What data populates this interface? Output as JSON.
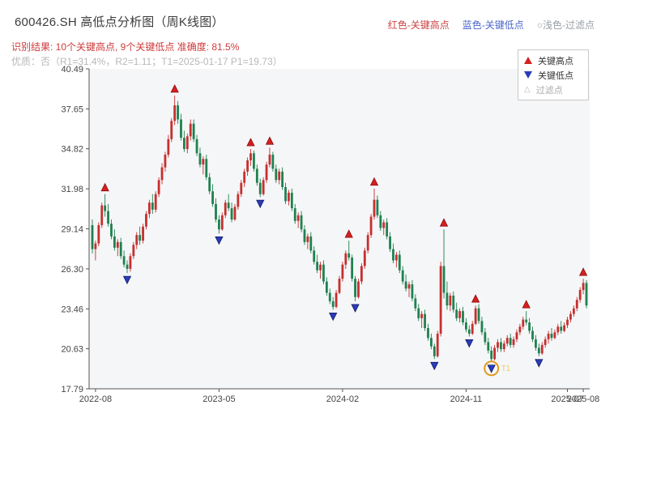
{
  "header": {
    "title": "600426.SH 高低点分析图（周K线图）",
    "legend_inline": {
      "high": "红色-关键高点",
      "low": "蓝色-关键低点",
      "filter": "○浅色-过滤点"
    },
    "result_line": "识别结果: 10个关键高点, 9个关键低点  准确度: 81.5%",
    "quality_line": "优质：否（R1=31.4%，R2=1.11；T1=2025-01-17 P1=19.73）"
  },
  "legend_box": {
    "items": [
      {
        "label": "关键高点",
        "marker": "up-triangle",
        "color": "#d42020"
      },
      {
        "label": "关键低点",
        "marker": "down-triangle",
        "color": "#2a3cb8"
      },
      {
        "label": "过滤点",
        "marker": "hollow-triangle",
        "color": "#b9b9b9"
      }
    ]
  },
  "chart_data": {
    "type": "candlestick",
    "title": "600426.SH 高低点分析图（周K线图）",
    "ylim": [
      17.79,
      40.49
    ],
    "y_ticks": [
      "40.49",
      "37.65",
      "34.82",
      "31.98",
      "29.14",
      "26.30",
      "23.46",
      "20.63",
      "17.79"
    ],
    "x_ticks": [
      {
        "index": 1,
        "label": "2022-08"
      },
      {
        "index": 40,
        "label": "2023-05"
      },
      {
        "index": 79,
        "label": "2024-02"
      },
      {
        "index": 118,
        "label": "2024-11"
      },
      {
        "index": 150,
        "label": "2025-07"
      },
      {
        "index": 155,
        "label": "2025-08"
      }
    ],
    "up_color": "#c62f2f",
    "down_color": "#1f8150",
    "plot_bg": "#f5f6f7",
    "axis_color": "#555555",
    "tick_label_color": "#444444",
    "high_marker": {
      "fill": "#d42020",
      "stroke": "#8a0c0c"
    },
    "low_marker": {
      "fill": "#2a3cb8",
      "stroke": "#121d66"
    },
    "candles": [
      [
        29.4,
        29.8,
        27.4,
        27.7
      ],
      [
        27.7,
        28.3,
        26.9,
        28.1
      ],
      [
        28.1,
        29.6,
        27.9,
        29.4
      ],
      [
        29.4,
        31.0,
        29.2,
        30.8
      ],
      [
        30.8,
        31.6,
        30.0,
        30.4
      ],
      [
        30.4,
        30.9,
        29.3,
        29.5
      ],
      [
        29.5,
        29.8,
        28.4,
        28.6
      ],
      [
        28.6,
        29.1,
        27.6,
        27.8
      ],
      [
        27.8,
        28.4,
        27.2,
        28.2
      ],
      [
        28.2,
        28.5,
        27.0,
        27.2
      ],
      [
        27.2,
        27.6,
        26.4,
        26.6
      ],
      [
        26.6,
        26.9,
        26.0,
        26.3
      ],
      [
        26.3,
        27.4,
        26.1,
        27.2
      ],
      [
        27.2,
        28.2,
        27.0,
        28.0
      ],
      [
        28.0,
        28.9,
        27.7,
        28.7
      ],
      [
        28.7,
        29.3,
        28.0,
        28.3
      ],
      [
        28.3,
        29.5,
        28.1,
        29.3
      ],
      [
        29.3,
        30.4,
        29.1,
        30.2
      ],
      [
        30.2,
        31.2,
        29.9,
        31.0
      ],
      [
        31.0,
        31.6,
        30.2,
        30.5
      ],
      [
        30.5,
        31.8,
        30.3,
        31.6
      ],
      [
        31.6,
        32.8,
        31.4,
        32.6
      ],
      [
        32.6,
        33.8,
        32.3,
        33.5
      ],
      [
        33.5,
        34.6,
        33.2,
        34.4
      ],
      [
        34.4,
        35.8,
        34.2,
        35.5
      ],
      [
        35.5,
        37.0,
        35.3,
        36.8
      ],
      [
        36.8,
        38.6,
        36.5,
        37.9
      ],
      [
        37.9,
        38.2,
        36.6,
        36.9
      ],
      [
        36.9,
        37.3,
        35.4,
        35.6
      ],
      [
        35.6,
        36.1,
        34.6,
        34.8
      ],
      [
        34.8,
        35.9,
        34.5,
        35.7
      ],
      [
        35.7,
        36.9,
        35.4,
        36.6
      ],
      [
        36.6,
        36.9,
        35.3,
        35.5
      ],
      [
        35.5,
        35.8,
        34.3,
        34.5
      ],
      [
        34.5,
        34.9,
        33.5,
        33.7
      ],
      [
        33.7,
        34.3,
        33.0,
        34.1
      ],
      [
        34.1,
        34.4,
        32.6,
        32.8
      ],
      [
        32.8,
        33.1,
        31.6,
        31.8
      ],
      [
        31.8,
        32.3,
        30.7,
        30.9
      ],
      [
        30.9,
        31.3,
        29.6,
        29.8
      ],
      [
        29.8,
        30.1,
        28.8,
        29.1
      ],
      [
        29.1,
        30.3,
        29.0,
        30.1
      ],
      [
        30.1,
        31.2,
        29.9,
        31.0
      ],
      [
        31.0,
        31.6,
        30.4,
        30.6
      ],
      [
        30.6,
        31.0,
        29.6,
        29.8
      ],
      [
        29.8,
        30.9,
        29.7,
        30.7
      ],
      [
        30.7,
        31.8,
        30.5,
        31.6
      ],
      [
        31.6,
        32.6,
        31.4,
        32.4
      ],
      [
        32.4,
        33.4,
        32.1,
        33.2
      ],
      [
        33.2,
        34.2,
        32.9,
        34.0
      ],
      [
        34.0,
        34.8,
        33.6,
        34.5
      ],
      [
        34.5,
        34.7,
        33.2,
        33.4
      ],
      [
        33.4,
        33.7,
        32.2,
        32.4
      ],
      [
        32.4,
        32.7,
        31.4,
        31.6
      ],
      [
        31.6,
        32.8,
        31.5,
        32.6
      ],
      [
        32.6,
        33.9,
        32.4,
        33.7
      ],
      [
        33.7,
        34.9,
        33.5,
        34.4
      ],
      [
        34.4,
        34.6,
        33.2,
        33.4
      ],
      [
        33.4,
        33.7,
        32.4,
        32.6
      ],
      [
        32.6,
        33.4,
        32.3,
        33.2
      ],
      [
        33.2,
        33.5,
        31.9,
        32.1
      ],
      [
        32.1,
        32.4,
        30.9,
        31.1
      ],
      [
        31.1,
        31.9,
        30.8,
        31.7
      ],
      [
        31.7,
        32.0,
        30.4,
        30.6
      ],
      [
        30.6,
        30.9,
        29.5,
        29.7
      ],
      [
        29.7,
        30.3,
        29.2,
        30.1
      ],
      [
        30.1,
        30.4,
        28.9,
        29.1
      ],
      [
        29.1,
        29.4,
        28.0,
        28.2
      ],
      [
        28.2,
        28.8,
        27.7,
        28.6
      ],
      [
        28.6,
        28.9,
        27.4,
        27.6
      ],
      [
        27.6,
        27.9,
        26.6,
        26.8
      ],
      [
        26.8,
        27.3,
        26.0,
        26.2
      ],
      [
        26.2,
        26.8,
        25.6,
        26.6
      ],
      [
        26.6,
        26.9,
        25.2,
        25.4
      ],
      [
        25.4,
        25.7,
        24.4,
        24.6
      ],
      [
        24.6,
        24.9,
        23.8,
        24.0
      ],
      [
        24.0,
        24.3,
        23.4,
        23.6
      ],
      [
        23.6,
        24.8,
        23.5,
        24.6
      ],
      [
        24.6,
        25.8,
        24.5,
        25.6
      ],
      [
        25.6,
        26.8,
        25.4,
        26.6
      ],
      [
        26.6,
        27.6,
        26.3,
        27.4
      ],
      [
        27.4,
        28.3,
        26.9,
        27.1
      ],
      [
        27.1,
        27.3,
        25.4,
        25.6
      ],
      [
        25.6,
        25.8,
        24.0,
        24.3
      ],
      [
        24.3,
        25.6,
        24.2,
        25.4
      ],
      [
        25.4,
        26.7,
        25.2,
        26.5
      ],
      [
        26.5,
        27.8,
        26.3,
        27.6
      ],
      [
        27.6,
        28.9,
        27.4,
        28.7
      ],
      [
        28.7,
        30.2,
        28.5,
        30.0
      ],
      [
        30.0,
        32.0,
        29.8,
        31.2
      ],
      [
        31.2,
        31.5,
        29.9,
        30.1
      ],
      [
        30.1,
        30.4,
        29.0,
        29.2
      ],
      [
        29.2,
        29.8,
        28.7,
        29.6
      ],
      [
        29.6,
        29.9,
        28.4,
        28.6
      ],
      [
        28.6,
        28.9,
        27.5,
        27.7
      ],
      [
        27.7,
        28.1,
        26.7,
        26.9
      ],
      [
        26.9,
        27.5,
        26.4,
        27.3
      ],
      [
        27.3,
        27.6,
        26.0,
        26.2
      ],
      [
        26.2,
        26.5,
        25.2,
        25.4
      ],
      [
        25.4,
        25.9,
        24.7,
        24.9
      ],
      [
        24.9,
        25.4,
        24.3,
        25.2
      ],
      [
        25.2,
        25.5,
        24.0,
        24.2
      ],
      [
        24.2,
        24.5,
        23.3,
        23.5
      ],
      [
        23.5,
        23.8,
        22.6,
        22.8
      ],
      [
        22.8,
        23.3,
        22.1,
        23.1
      ],
      [
        23.1,
        23.4,
        21.9,
        22.1
      ],
      [
        22.1,
        22.4,
        21.2,
        21.4
      ],
      [
        21.4,
        21.7,
        20.6,
        20.8
      ],
      [
        20.8,
        21.0,
        19.9,
        20.1
      ],
      [
        20.1,
        21.9,
        20.0,
        21.7
      ],
      [
        21.7,
        26.8,
        21.5,
        26.5
      ],
      [
        26.5,
        29.1,
        24.2,
        24.6
      ],
      [
        24.6,
        25.4,
        23.4,
        23.7
      ],
      [
        23.7,
        24.6,
        23.3,
        24.4
      ],
      [
        24.4,
        24.7,
        23.2,
        23.4
      ],
      [
        23.4,
        23.9,
        22.6,
        22.8
      ],
      [
        22.8,
        23.5,
        22.5,
        23.3
      ],
      [
        23.3,
        23.6,
        22.3,
        22.5
      ],
      [
        22.5,
        22.8,
        21.8,
        22.0
      ],
      [
        22.0,
        22.3,
        21.5,
        21.7
      ],
      [
        21.7,
        22.6,
        21.6,
        22.4
      ],
      [
        22.4,
        23.7,
        22.3,
        23.5
      ],
      [
        23.5,
        23.8,
        22.4,
        22.6
      ],
      [
        22.6,
        22.9,
        21.6,
        21.8
      ],
      [
        21.8,
        22.1,
        20.9,
        21.1
      ],
      [
        21.1,
        21.4,
        20.3,
        20.5
      ],
      [
        20.5,
        20.8,
        19.7,
        19.9
      ],
      [
        19.9,
        20.9,
        19.8,
        20.7
      ],
      [
        20.7,
        21.3,
        20.4,
        21.1
      ],
      [
        21.1,
        21.4,
        20.4,
        20.6
      ],
      [
        20.6,
        21.2,
        20.4,
        21.0
      ],
      [
        21.0,
        21.6,
        20.8,
        21.4
      ],
      [
        21.4,
        21.7,
        20.7,
        20.9
      ],
      [
        20.9,
        21.5,
        20.7,
        21.3
      ],
      [
        21.3,
        22.0,
        21.1,
        21.8
      ],
      [
        21.8,
        22.4,
        21.6,
        22.2
      ],
      [
        22.2,
        22.9,
        22.0,
        22.7
      ],
      [
        22.7,
        23.3,
        22.3,
        22.5
      ],
      [
        22.5,
        22.8,
        21.7,
        21.9
      ],
      [
        21.9,
        22.2,
        21.1,
        21.3
      ],
      [
        21.3,
        21.6,
        20.5,
        20.7
      ],
      [
        20.7,
        21.0,
        20.1,
        20.3
      ],
      [
        20.3,
        21.1,
        20.2,
        20.9
      ],
      [
        20.9,
        21.5,
        20.7,
        21.3
      ],
      [
        21.3,
        21.9,
        21.0,
        21.7
      ],
      [
        21.7,
        22.1,
        21.2,
        21.4
      ],
      [
        21.4,
        22.0,
        21.3,
        21.8
      ],
      [
        21.8,
        22.4,
        21.6,
        22.2
      ],
      [
        22.2,
        22.6,
        21.7,
        21.9
      ],
      [
        21.9,
        22.5,
        21.8,
        22.3
      ],
      [
        22.3,
        22.9,
        22.1,
        22.7
      ],
      [
        22.7,
        23.3,
        22.5,
        23.1
      ],
      [
        23.1,
        23.7,
        22.9,
        23.5
      ],
      [
        23.5,
        24.3,
        23.3,
        24.1
      ],
      [
        24.1,
        25.0,
        23.9,
        24.8
      ],
      [
        24.8,
        25.6,
        24.5,
        25.3
      ],
      [
        25.3,
        25.5,
        23.5,
        23.7
      ]
    ],
    "key_highs": [
      {
        "index": 4,
        "price": 31.6
      },
      {
        "index": 26,
        "price": 38.6
      },
      {
        "index": 50,
        "price": 34.8
      },
      {
        "index": 56,
        "price": 34.9
      },
      {
        "index": 81,
        "price": 28.3
      },
      {
        "index": 89,
        "price": 32.0
      },
      {
        "index": 111,
        "price": 29.1
      },
      {
        "index": 121,
        "price": 23.7
      },
      {
        "index": 137,
        "price": 23.3
      },
      {
        "index": 155,
        "price": 25.6
      }
    ],
    "key_lows": [
      {
        "index": 11,
        "price": 26.0
      },
      {
        "index": 40,
        "price": 28.8
      },
      {
        "index": 53,
        "price": 31.4
      },
      {
        "index": 76,
        "price": 23.4
      },
      {
        "index": 83,
        "price": 24.0
      },
      {
        "index": 108,
        "price": 19.9
      },
      {
        "index": 119,
        "price": 21.5
      },
      {
        "index": 126,
        "price": 19.7
      },
      {
        "index": 141,
        "price": 20.1
      }
    ],
    "highlight": {
      "index": 126,
      "price": 19.7,
      "label": "T1",
      "circle_color": "#e29a1b",
      "label_color": "#e6cd6e"
    }
  }
}
